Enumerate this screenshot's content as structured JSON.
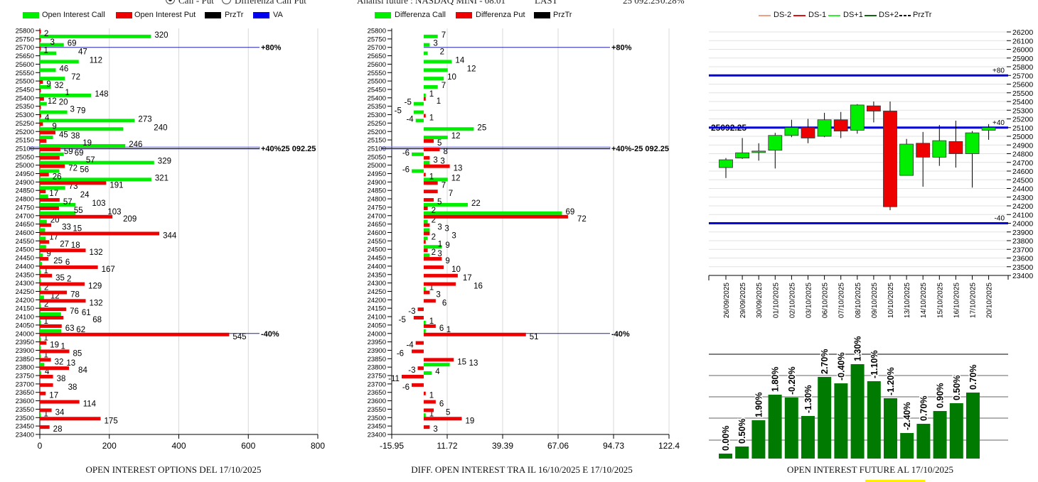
{
  "header": {
    "radio_call_put": "Call - Put",
    "radio_diff": "Differenza Call Put",
    "analysis": "Analisi future : NASDAQ MINI - 08.01",
    "last_label": "LAST",
    "last_value": "25 092.25",
    "change": "0.28%"
  },
  "colors": {
    "call": "#00ee00",
    "put": "#ee0000",
    "przTr": "#000000",
    "va": "#0000cc",
    "oi_bar": "#007a00"
  },
  "chart_data": [
    {
      "type": "bar",
      "orientation": "horizontal",
      "title": "OPEN INTEREST OPTIONS DEL 17/10/2025",
      "legend": [
        "Open Interest Call",
        "Open Interest Put",
        "PrzTr",
        "VA"
      ],
      "legend_placement": "top",
      "xlim": [
        0,
        800
      ],
      "xticks": [
        "0",
        "200",
        "400",
        "600",
        "800"
      ],
      "strikes": [
        25800,
        25750,
        25700,
        25650,
        25600,
        25550,
        25500,
        25450,
        25400,
        25350,
        25300,
        25250,
        25200,
        25150,
        25100,
        25050,
        25000,
        24950,
        24900,
        24850,
        24800,
        24750,
        24700,
        24650,
        24600,
        24550,
        24500,
        24450,
        24400,
        24350,
        24300,
        24250,
        24200,
        24150,
        24100,
        24050,
        24000,
        23950,
        23900,
        23850,
        23800,
        23750,
        23700,
        23650,
        23600,
        23550,
        23500,
        23450,
        23400
      ],
      "series": [
        {
          "name": "Open Interest Call",
          "values": [
            0,
            320,
            69,
            47,
            112,
            46,
            72,
            32,
            148,
            20,
            79,
            273,
            240,
            38,
            246,
            69,
            329,
            56,
            321,
            73,
            24,
            103,
            103,
            20,
            15,
            17,
            18,
            9,
            6,
            1,
            2,
            2,
            12,
            2,
            61,
            1,
            62,
            1,
            1,
            1,
            13,
            4,
            0,
            0,
            0,
            0,
            1,
            0,
            0
          ]
        },
        {
          "name": "Open Interest Put",
          "values": [
            2,
            3,
            1,
            0,
            0,
            0,
            9,
            1,
            12,
            3,
            4,
            9,
            45,
            19,
            59,
            57,
            72,
            26,
            191,
            17,
            57,
            55,
            209,
            33,
            344,
            27,
            132,
            25,
            167,
            35,
            129,
            78,
            132,
            76,
            68,
            63,
            545,
            19,
            85,
            32,
            84,
            38,
            38,
            17,
            114,
            34,
            175,
            28,
            0
          ]
        }
      ],
      "levels": [
        {
          "strike": 25700,
          "label": "+80%"
        },
        {
          "strike": 25100,
          "label": "+40%25 092.25"
        },
        {
          "strike": 24000,
          "label": "-40%"
        }
      ],
      "price": 25092.25
    },
    {
      "type": "bar",
      "orientation": "horizontal",
      "title": "DIFF. OPEN INTEREST TRA IL 16/10/2025 E 17/10/2025",
      "legend": [
        "Differenza Call",
        "Differenza Put",
        "PrzTr"
      ],
      "legend_placement": "top",
      "xlim": [
        -15.95,
        122.4
      ],
      "xticks": [
        "-15.95",
        "11.72",
        "39.39",
        "67.06",
        "94.73",
        "122.4"
      ],
      "strikes": [
        25800,
        25750,
        25700,
        25650,
        25600,
        25550,
        25500,
        25450,
        25400,
        25350,
        25300,
        25250,
        25200,
        25150,
        25100,
        25050,
        25000,
        24950,
        24900,
        24850,
        24800,
        24750,
        24700,
        24650,
        24600,
        24550,
        24500,
        24450,
        24400,
        24350,
        24300,
        24250,
        24200,
        24150,
        24100,
        24050,
        24000,
        23950,
        23900,
        23850,
        23800,
        23750,
        23700,
        23650,
        23600,
        23550,
        23500,
        23450,
        23400
      ],
      "series": [
        {
          "name": "Differenza Call",
          "values": [
            0,
            7,
            3,
            2,
            14,
            12,
            10,
            7,
            1,
            -5,
            -5,
            -4,
            25,
            12,
            0,
            -6,
            3,
            -6,
            12,
            0,
            0,
            22,
            69,
            2,
            3,
            2,
            9,
            3,
            0,
            0,
            0,
            1,
            0,
            0,
            0,
            1,
            1,
            0,
            0,
            0,
            13,
            4,
            0,
            0,
            0,
            0,
            1,
            0,
            0
          ]
        },
        {
          "name": "Differenza Put",
          "values": [
            0,
            0,
            0,
            0,
            0,
            0,
            0,
            0,
            1,
            0,
            1,
            0,
            0,
            5,
            8,
            3,
            13,
            1,
            7,
            7,
            5,
            2,
            72,
            3,
            3,
            1,
            2,
            9,
            10,
            17,
            16,
            3,
            6,
            -3,
            -5,
            6,
            51,
            -4,
            -6,
            15,
            -3,
            -11,
            -6,
            1,
            6,
            5,
            19,
            3,
            0
          ]
        }
      ],
      "levels": [
        {
          "strike": 25700,
          "label": "+80%"
        },
        {
          "strike": 25100,
          "label": "+40%-25 092.25"
        },
        {
          "strike": 24000,
          "label": "-40%"
        }
      ]
    },
    {
      "type": "candlestick",
      "legend": [
        "DS-2",
        "DS-1",
        "DS+1",
        "DS+2",
        "PrzTr"
      ],
      "legend_placement": "top",
      "ylim": [
        23400,
        26200
      ],
      "yticks": [
        "26200",
        "26100",
        "26000",
        "25900",
        "25800",
        "25700",
        "25600",
        "25500",
        "25400",
        "25300",
        "25200",
        "25100",
        "25000",
        "24900",
        "24800",
        "24700",
        "24600",
        "24500",
        "24400",
        "24300",
        "24200",
        "24100",
        "24000",
        "23900",
        "23800",
        "23700",
        "23600",
        "23500",
        "23400"
      ],
      "dates": [
        "26/09/2025",
        "29/09/2025",
        "30/09/2025",
        "01/10/2025",
        "02/10/2025",
        "03/10/2025",
        "06/10/2025",
        "07/10/2025",
        "08/10/2025",
        "09/10/2025",
        "10/10/2025",
        "13/10/2025",
        "14/10/2025",
        "15/10/2025",
        "16/10/2025",
        "17/10/2025",
        "20/10/2025"
      ],
      "ohlc": [
        [
          24640,
          24750,
          24520,
          24730
        ],
        [
          24750,
          24980,
          24740,
          24810
        ],
        [
          24820,
          24920,
          24720,
          24830
        ],
        [
          24840,
          25040,
          24630,
          25010
        ],
        [
          25010,
          25190,
          24990,
          25100
        ],
        [
          25100,
          25200,
          24920,
          24980
        ],
        [
          25000,
          25270,
          24990,
          25190
        ],
        [
          25190,
          25280,
          24980,
          25060
        ],
        [
          25070,
          25370,
          25030,
          25360
        ],
        [
          25350,
          25400,
          25160,
          25290
        ],
        [
          25290,
          25400,
          24150,
          24190
        ],
        [
          24550,
          24970,
          24550,
          24910
        ],
        [
          24920,
          25050,
          24420,
          24760
        ],
        [
          24760,
          25130,
          24660,
          24950
        ],
        [
          24940,
          25180,
          24640,
          24800
        ],
        [
          24800,
          25060,
          24410,
          25040
        ],
        [
          25070,
          25140,
          24960,
          25100
        ]
      ],
      "levels": [
        {
          "value": 25700,
          "label": "+80"
        },
        {
          "value": 25100,
          "label": "+40"
        },
        {
          "value": 24000,
          "label": "-40"
        }
      ],
      "price_label": "25092.25"
    },
    {
      "type": "bar",
      "title": "OPEN INTEREST FUTURE AL 17/10/2025",
      "labels": [
        "0.00%",
        "0.50%",
        "1.90%",
        "1.80%",
        "-0.20%",
        "-1.30%",
        "2.70%",
        "-0.40%",
        "1.30%",
        "-1.10%",
        "-1.20%",
        "-2.40%",
        "0.70%",
        "0.90%",
        "0.50%",
        "0.70%"
      ],
      "relative_values": [
        7,
        17,
        54,
        90,
        86,
        60,
        115,
        106,
        133,
        109,
        85,
        36,
        49,
        67,
        78,
        93
      ],
      "grid": true
    }
  ]
}
